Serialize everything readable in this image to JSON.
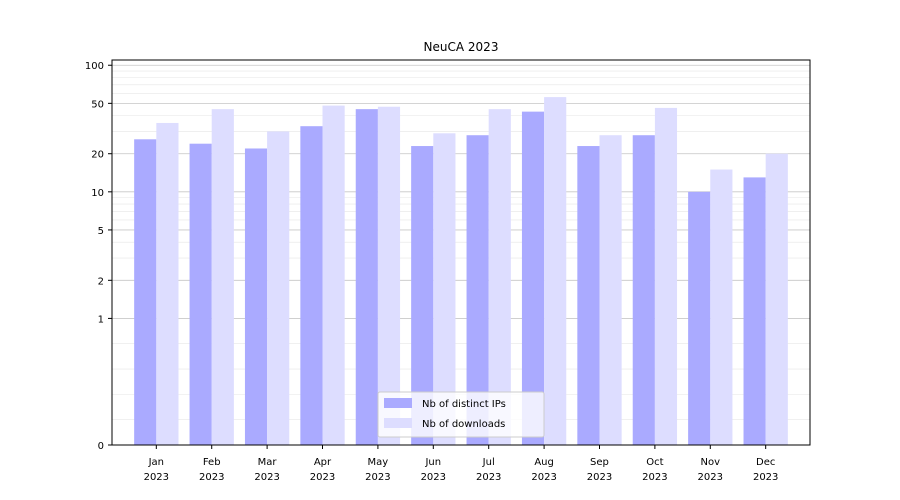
{
  "chart_data": {
    "type": "bar",
    "title": "NeuCA 2023",
    "xlabel": "",
    "ylabel": "",
    "yscale": "symlog",
    "ylim": [
      0,
      110
    ],
    "yticks": [
      0,
      1,
      2,
      5,
      10,
      20,
      50,
      100
    ],
    "grid": "horizontal",
    "legend": "bottom-center",
    "categories": [
      [
        "Jan",
        "2023"
      ],
      [
        "Feb",
        "2023"
      ],
      [
        "Mar",
        "2023"
      ],
      [
        "Apr",
        "2023"
      ],
      [
        "May",
        "2023"
      ],
      [
        "Jun",
        "2023"
      ],
      [
        "Jul",
        "2023"
      ],
      [
        "Aug",
        "2023"
      ],
      [
        "Sep",
        "2023"
      ],
      [
        "Oct",
        "2023"
      ],
      [
        "Nov",
        "2023"
      ],
      [
        "Dec",
        "2023"
      ]
    ],
    "series": [
      {
        "name": "Nb of distinct IPs",
        "color": "#aaaaff",
        "values": [
          26,
          24,
          22,
          33,
          45,
          23,
          28,
          43,
          23,
          28,
          10,
          13
        ]
      },
      {
        "name": "Nb of downloads",
        "color": "#ddddff",
        "values": [
          35,
          45,
          30,
          48,
          47,
          29,
          45,
          56,
          28,
          46,
          15,
          20
        ]
      }
    ]
  }
}
